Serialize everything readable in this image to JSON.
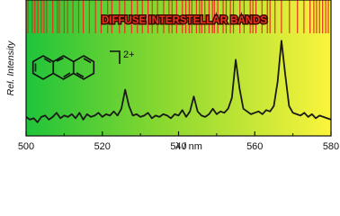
{
  "chart_data": {
    "type": "line",
    "title": "DIFFUSE INTERSTELLAR BANDS",
    "x_label": "λ / nm",
    "y_label": "Rel. Intensity",
    "charge_label": "2+",
    "xlim": [
      500,
      580
    ],
    "xticks": [
      500,
      520,
      540,
      560,
      580
    ],
    "xminorticks": [
      510,
      530,
      550,
      570
    ],
    "ylim": [
      0,
      1
    ],
    "bands": {
      "color": "#e8321e",
      "x": [
        500.5,
        501.6,
        502.3,
        503.1,
        504.0,
        504.7,
        505.4,
        507.0,
        508.2,
        508.7,
        510.0,
        510.9,
        512.3,
        513.8,
        515.0,
        516.6,
        518.2,
        519.7,
        521.4,
        522.5,
        524.5,
        525.9,
        527.7,
        529.2,
        530.5,
        532.0,
        533.1,
        534.5,
        536.1,
        537.5,
        538.3,
        539.5,
        541.0,
        541.9,
        542.8,
        543.5,
        544.7,
        545.5,
        546.1,
        546.9,
        548.0,
        548.9,
        549.4,
        550.3,
        551.7,
        552.5,
        553.6,
        554.4,
        556.1,
        557.2,
        558.8,
        559.5,
        560.3,
        561.9,
        563.3,
        564.0,
        565.3,
        567.0,
        569.1,
        571.2,
        572.9,
        574.5,
        575.5,
        576.2,
        577.0,
        577.8,
        578.6,
        579.3
      ]
    },
    "series": [
      {
        "color": "#1a1a1a",
        "x": [
          500,
          501,
          502,
          503,
          504,
          505,
          506,
          507,
          508,
          509,
          510,
          511,
          512,
          513,
          514,
          515,
          516,
          517,
          518,
          519,
          520,
          521,
          522,
          523,
          524,
          525,
          526,
          527,
          528,
          529,
          530,
          531,
          532,
          533,
          534,
          535,
          536,
          537,
          538,
          539,
          540,
          541,
          542,
          543,
          544,
          545,
          546,
          547,
          548,
          549,
          550,
          551,
          552,
          553,
          554,
          555,
          556,
          557,
          558,
          559,
          560,
          561,
          562,
          563,
          564,
          565,
          566,
          567,
          568,
          569,
          570,
          571,
          572,
          573,
          574,
          575,
          576,
          577,
          578,
          579,
          580
        ],
        "values": [
          0.14,
          0.12,
          0.13,
          0.1,
          0.14,
          0.15,
          0.12,
          0.14,
          0.17,
          0.13,
          0.15,
          0.14,
          0.16,
          0.13,
          0.17,
          0.12,
          0.16,
          0.14,
          0.15,
          0.17,
          0.14,
          0.16,
          0.15,
          0.18,
          0.15,
          0.2,
          0.34,
          0.22,
          0.15,
          0.16,
          0.14,
          0.15,
          0.17,
          0.13,
          0.15,
          0.14,
          0.16,
          0.15,
          0.13,
          0.16,
          0.15,
          0.19,
          0.14,
          0.18,
          0.29,
          0.18,
          0.15,
          0.14,
          0.16,
          0.2,
          0.16,
          0.18,
          0.17,
          0.2,
          0.28,
          0.56,
          0.35,
          0.2,
          0.18,
          0.16,
          0.17,
          0.18,
          0.16,
          0.19,
          0.18,
          0.22,
          0.4,
          0.7,
          0.45,
          0.22,
          0.17,
          0.16,
          0.15,
          0.17,
          0.14,
          0.16,
          0.13,
          0.15,
          0.14,
          0.13,
          0.12
        ]
      }
    ]
  }
}
